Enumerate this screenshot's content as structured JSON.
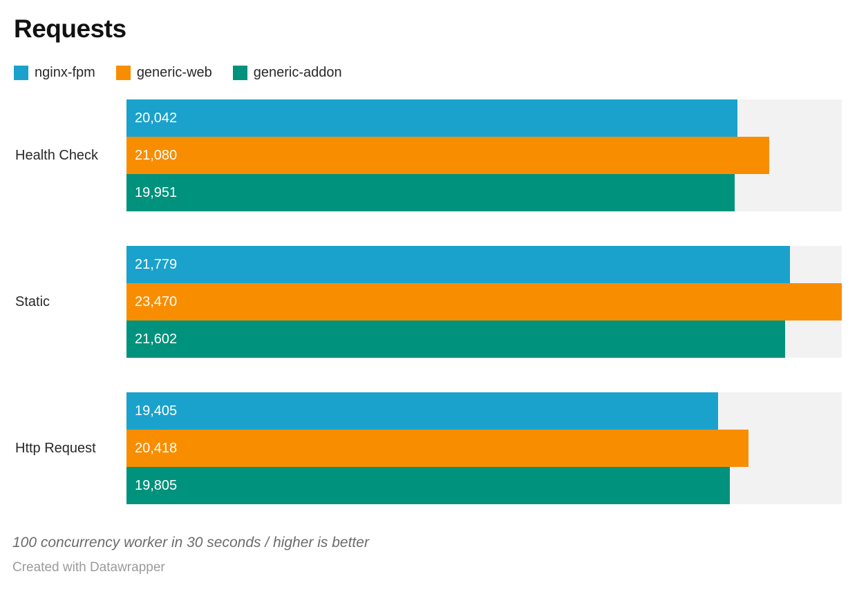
{
  "header": {
    "title": "Requests"
  },
  "legend": {
    "items": [
      {
        "label": "nginx-fpm",
        "color": "#1AA2CC"
      },
      {
        "label": "generic-web",
        "color": "#F98D00"
      },
      {
        "label": "generic-addon",
        "color": "#00927C"
      }
    ]
  },
  "chart_data": {
    "type": "bar",
    "orientation": "horizontal",
    "title": "Requests",
    "categories": [
      "Health Check",
      "Static",
      "Http Request"
    ],
    "series": [
      {
        "name": "nginx-fpm",
        "color": "#1AA2CC",
        "values": [
          20042,
          21779,
          19405
        ],
        "labels": [
          "20,042",
          "21,779",
          "19,405"
        ]
      },
      {
        "name": "generic-web",
        "color": "#F98D00",
        "values": [
          21080,
          23470,
          20418
        ],
        "labels": [
          "21,080",
          "23,470",
          "20,418"
        ]
      },
      {
        "name": "generic-addon",
        "color": "#00927C",
        "values": [
          19951,
          21602,
          19805
        ],
        "labels": [
          "19,951",
          "21,602",
          "19,805"
        ]
      }
    ],
    "xlim": [
      0,
      23470
    ],
    "grid": false,
    "legend_position": "top",
    "track_color": "#F2F2F2",
    "value_label_color": "#FFFFFF"
  },
  "footer": {
    "note": "100 concurrency worker in 30 seconds / higher is better",
    "attribution": "Created with Datawrapper"
  }
}
